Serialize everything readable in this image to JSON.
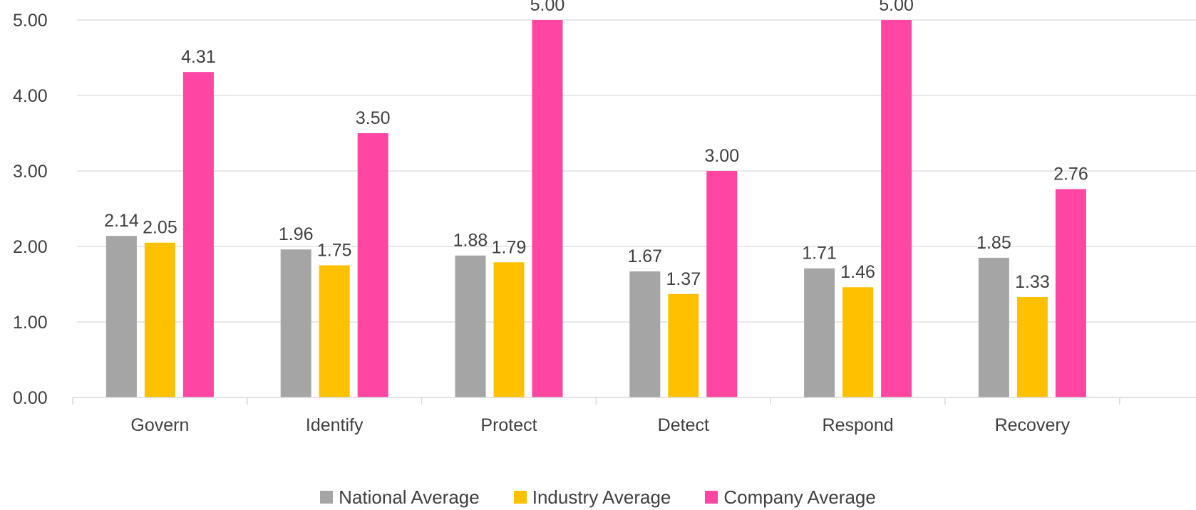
{
  "chart_data": {
    "type": "bar",
    "title": "",
    "xlabel": "",
    "ylabel": "",
    "categories": [
      "Govern",
      "Identify",
      "Protect",
      "Detect",
      "Respond",
      "Recovery"
    ],
    "series": [
      {
        "name": "National Average",
        "color": "#a5a5a5",
        "values": [
          2.14,
          1.96,
          1.88,
          1.67,
          1.71,
          1.85
        ]
      },
      {
        "name": "Industry Average",
        "color": "#ffc000",
        "values": [
          2.05,
          1.75,
          1.79,
          1.37,
          1.46,
          1.33
        ]
      },
      {
        "name": "Company Average",
        "color": "#ff46a3",
        "values": [
          4.31,
          3.5,
          5.0,
          3.0,
          5.0,
          2.76
        ]
      }
    ],
    "ylim": [
      0,
      5
    ],
    "yticks": [
      "0.00",
      "1.00",
      "2.00",
      "3.00",
      "4.00",
      "5.00"
    ],
    "data_label_format": "0.00",
    "grid": true,
    "legend_position": "bottom"
  }
}
